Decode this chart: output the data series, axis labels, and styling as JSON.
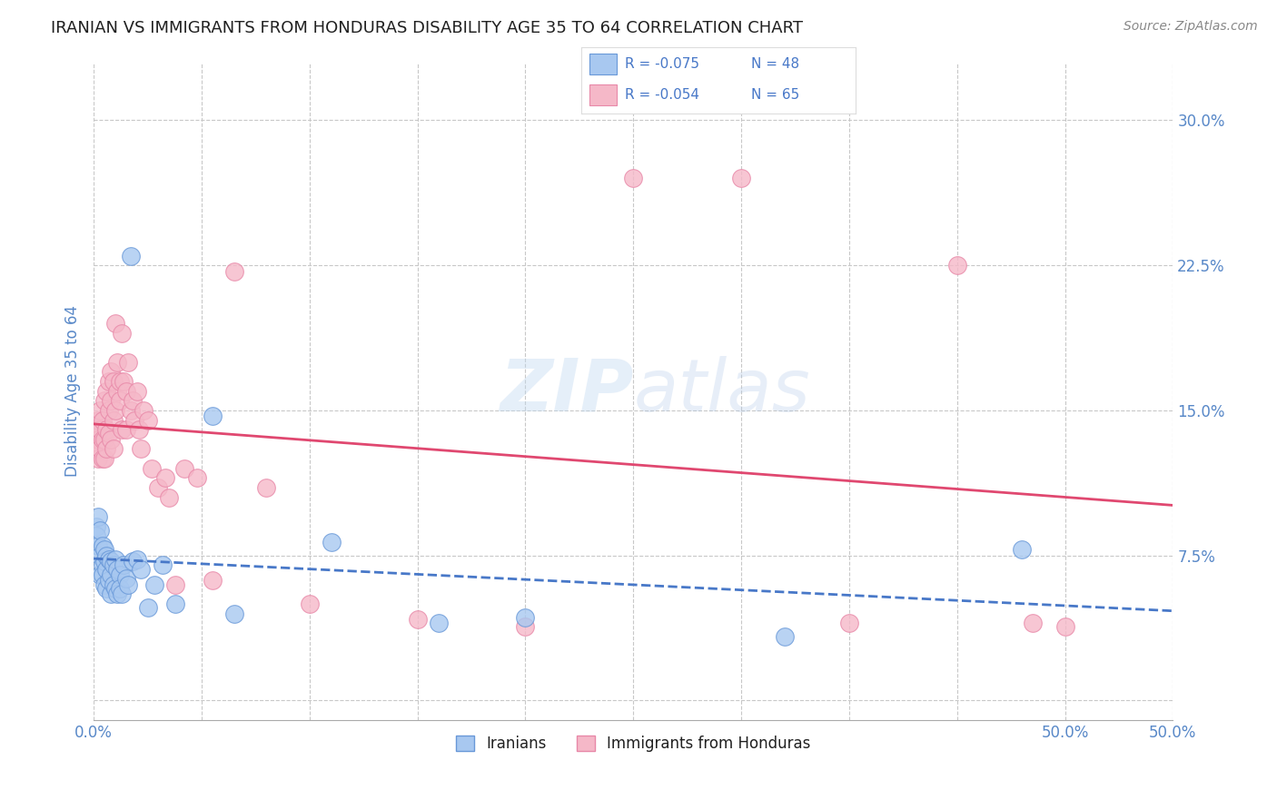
{
  "title": "IRANIAN VS IMMIGRANTS FROM HONDURAS DISABILITY AGE 35 TO 64 CORRELATION CHART",
  "source": "Source: ZipAtlas.com",
  "ylabel": "Disability Age 35 to 64",
  "xlim": [
    0.0,
    0.5
  ],
  "ylim": [
    -0.01,
    0.33
  ],
  "xticks": [
    0.0,
    0.05,
    0.1,
    0.15,
    0.2,
    0.25,
    0.3,
    0.35,
    0.4,
    0.45,
    0.5
  ],
  "xticklabels_show": {
    "0.0": "0.0%",
    "0.5": "50.0%"
  },
  "yticks": [
    0.0,
    0.075,
    0.15,
    0.225,
    0.3
  ],
  "yticklabels": [
    "",
    "7.5%",
    "15.0%",
    "22.5%",
    "30.0%"
  ],
  "iranian_color": "#a8c8f0",
  "honduran_color": "#f5b8c8",
  "iranian_edge": "#6898d8",
  "honduran_edge": "#e888a8",
  "trendline_iranian_color": "#4878c8",
  "trendline_honduran_color": "#e04870",
  "background_color": "#ffffff",
  "grid_color": "#c8c8c8",
  "title_color": "#202020",
  "axis_tick_color": "#5888c8",
  "R_iranian": -0.075,
  "N_iranian": 48,
  "R_honduran": -0.054,
  "N_honduran": 65,
  "iranians_x": [
    0.001,
    0.001,
    0.002,
    0.002,
    0.003,
    0.003,
    0.003,
    0.004,
    0.004,
    0.004,
    0.005,
    0.005,
    0.005,
    0.006,
    0.006,
    0.006,
    0.007,
    0.007,
    0.008,
    0.008,
    0.008,
    0.009,
    0.009,
    0.01,
    0.01,
    0.011,
    0.011,
    0.012,
    0.012,
    0.013,
    0.014,
    0.015,
    0.016,
    0.017,
    0.018,
    0.02,
    0.022,
    0.025,
    0.028,
    0.032,
    0.038,
    0.055,
    0.065,
    0.11,
    0.16,
    0.2,
    0.32,
    0.43
  ],
  "iranians_y": [
    0.09,
    0.085,
    0.095,
    0.08,
    0.088,
    0.075,
    0.065,
    0.08,
    0.07,
    0.065,
    0.078,
    0.072,
    0.06,
    0.075,
    0.068,
    0.058,
    0.073,
    0.062,
    0.072,
    0.065,
    0.055,
    0.07,
    0.06,
    0.073,
    0.058,
    0.068,
    0.055,
    0.065,
    0.058,
    0.055,
    0.07,
    0.063,
    0.06,
    0.23,
    0.072,
    0.073,
    0.068,
    0.048,
    0.06,
    0.07,
    0.05,
    0.147,
    0.045,
    0.082,
    0.04,
    0.043,
    0.033,
    0.078
  ],
  "hondurans_x": [
    0.001,
    0.001,
    0.002,
    0.002,
    0.002,
    0.003,
    0.003,
    0.003,
    0.004,
    0.004,
    0.004,
    0.005,
    0.005,
    0.005,
    0.006,
    0.006,
    0.006,
    0.007,
    0.007,
    0.007,
    0.008,
    0.008,
    0.008,
    0.009,
    0.009,
    0.009,
    0.01,
    0.01,
    0.011,
    0.011,
    0.012,
    0.012,
    0.013,
    0.013,
    0.014,
    0.015,
    0.015,
    0.016,
    0.017,
    0.018,
    0.019,
    0.02,
    0.021,
    0.022,
    0.023,
    0.025,
    0.027,
    0.03,
    0.033,
    0.035,
    0.038,
    0.042,
    0.048,
    0.055,
    0.065,
    0.08,
    0.1,
    0.15,
    0.2,
    0.25,
    0.3,
    0.35,
    0.4,
    0.435,
    0.45
  ],
  "hondurans_y": [
    0.14,
    0.13,
    0.135,
    0.145,
    0.125,
    0.14,
    0.13,
    0.15,
    0.135,
    0.125,
    0.145,
    0.135,
    0.155,
    0.125,
    0.16,
    0.14,
    0.13,
    0.165,
    0.15,
    0.138,
    0.17,
    0.155,
    0.135,
    0.165,
    0.145,
    0.13,
    0.195,
    0.15,
    0.16,
    0.175,
    0.155,
    0.165,
    0.14,
    0.19,
    0.165,
    0.16,
    0.14,
    0.175,
    0.15,
    0.155,
    0.145,
    0.16,
    0.14,
    0.13,
    0.15,
    0.145,
    0.12,
    0.11,
    0.115,
    0.105,
    0.06,
    0.12,
    0.115,
    0.062,
    0.222,
    0.11,
    0.05,
    0.042,
    0.038,
    0.27,
    0.27,
    0.04,
    0.225,
    0.04,
    0.038
  ]
}
